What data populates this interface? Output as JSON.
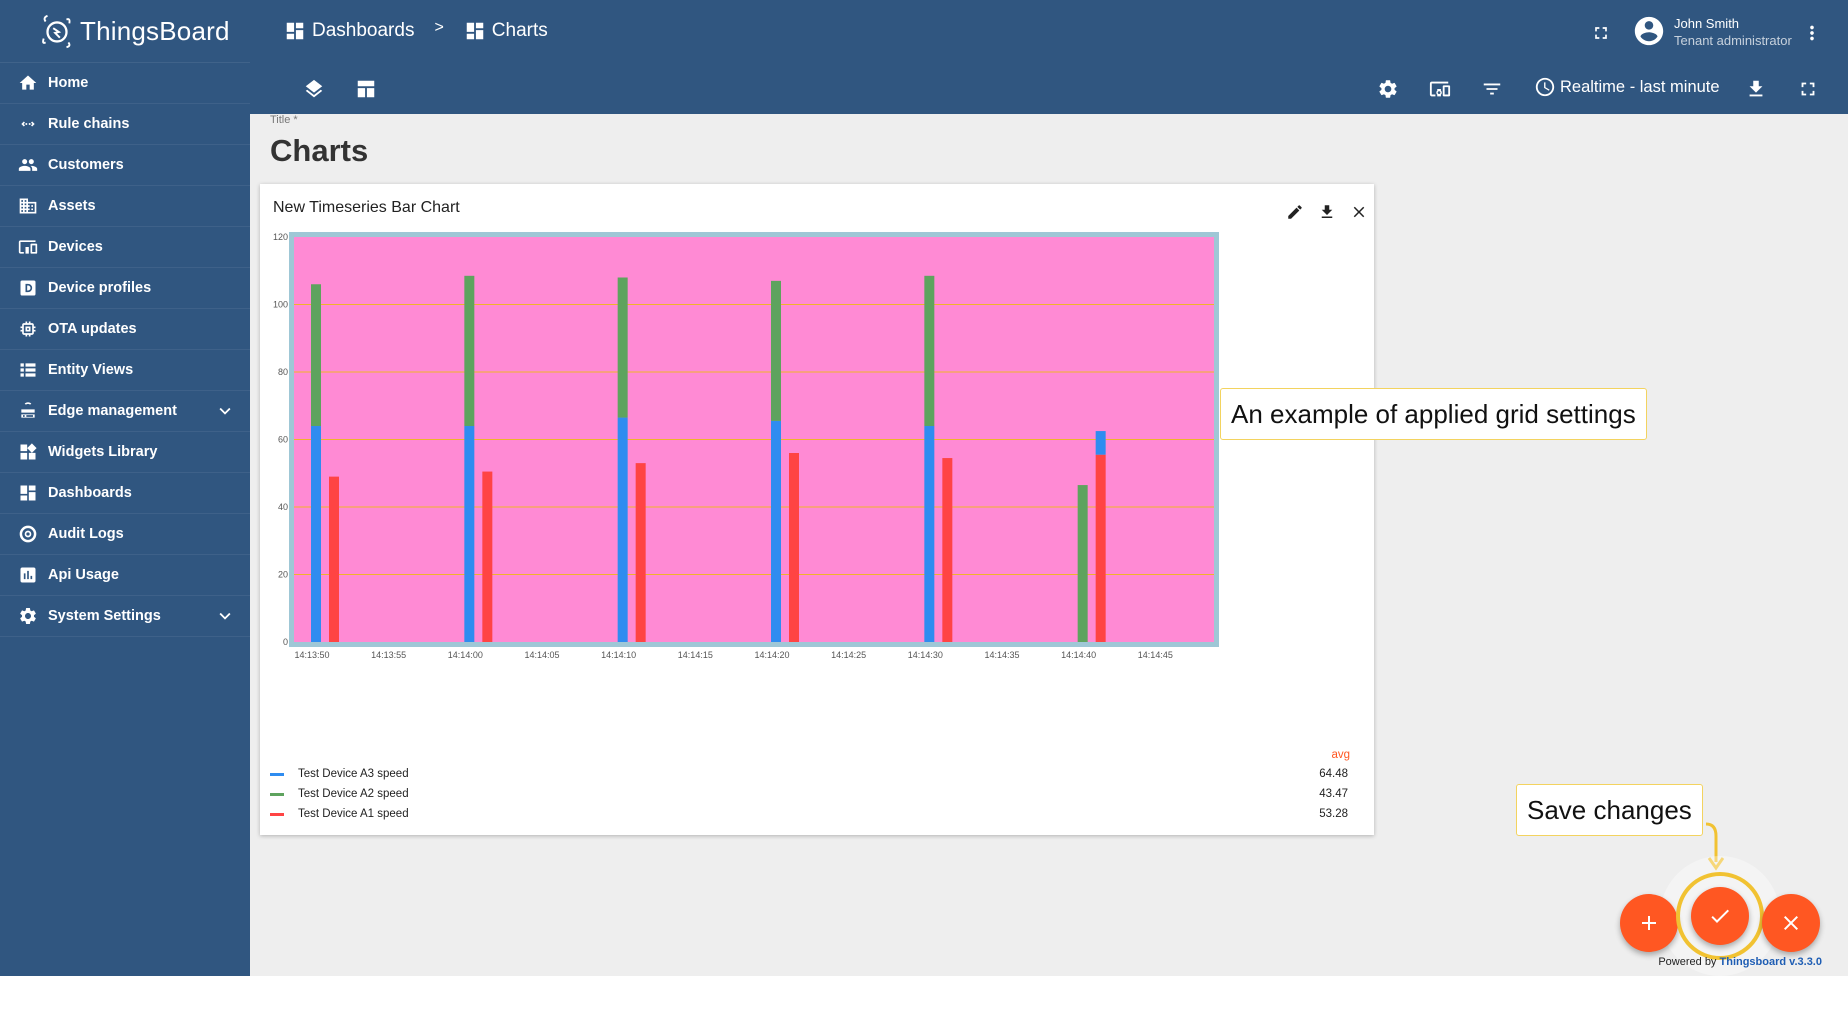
{
  "brand": {
    "name": "ThingsBoard"
  },
  "sidebar": {
    "items": [
      {
        "label": "Home",
        "icon": "home-icon"
      },
      {
        "label": "Rule chains",
        "icon": "rule-chains-icon"
      },
      {
        "label": "Customers",
        "icon": "customers-icon"
      },
      {
        "label": "Assets",
        "icon": "assets-icon"
      },
      {
        "label": "Devices",
        "icon": "devices-icon"
      },
      {
        "label": "Device profiles",
        "icon": "device-profiles-icon"
      },
      {
        "label": "OTA updates",
        "icon": "ota-icon"
      },
      {
        "label": "Entity Views",
        "icon": "entity-views-icon"
      },
      {
        "label": "Edge management",
        "icon": "edge-icon",
        "expandable": true
      },
      {
        "label": "Widgets Library",
        "icon": "widgets-icon"
      },
      {
        "label": "Dashboards",
        "icon": "dashboards-icon"
      },
      {
        "label": "Audit Logs",
        "icon": "audit-icon"
      },
      {
        "label": "Api Usage",
        "icon": "api-usage-icon"
      },
      {
        "label": "System Settings",
        "icon": "settings-icon",
        "expandable": true
      }
    ]
  },
  "header": {
    "breadcrumb": [
      "Dashboards",
      "Charts"
    ],
    "separator": ">",
    "user": {
      "name": "John Smith",
      "role": "Tenant administrator"
    },
    "timewindow": "Realtime - last minute"
  },
  "dashboard": {
    "title_label": "Title *",
    "title": "Charts"
  },
  "widget": {
    "title": "New Timeseries Bar Chart",
    "avg_label": "avg"
  },
  "chart_data": {
    "type": "bar",
    "title": "New Timeseries Bar Chart",
    "x_ticks": [
      "14:13:50",
      "14:13:55",
      "14:14:00",
      "14:14:05",
      "14:14:10",
      "14:14:15",
      "14:14:20",
      "14:14:25",
      "14:14:30",
      "14:14:35",
      "14:14:40",
      "14:14:45"
    ],
    "ylim": [
      0,
      120
    ],
    "y_ticks": [
      0,
      20,
      40,
      60,
      80,
      100,
      120
    ],
    "grid": true,
    "grid_color": "#f0b429",
    "plot_background": "#ff8ad4",
    "stacked": true,
    "categories": [
      "14:13:50",
      "14:14:00",
      "14:14:10",
      "14:14:20",
      "14:14:30",
      "14:14:40"
    ],
    "series": [
      {
        "name": "Test Device A3 speed",
        "color": "#2f8cf0",
        "stack": "a",
        "values": [
          64,
          64,
          66.5,
          65.5,
          64,
          0
        ],
        "avg": "64.48"
      },
      {
        "name": "Test Device A2 speed",
        "color": "#5ea35e",
        "stack": "a",
        "values": [
          42,
          44.5,
          41.5,
          41.5,
          44.5,
          46.5
        ],
        "avg": "43.47"
      },
      {
        "name": "Test Device A1 speed",
        "color": "#ff4444",
        "stack": "b",
        "values": [
          49,
          50.5,
          53,
          56,
          54.5,
          55.5
        ],
        "avg": "53.28"
      },
      {
        "name": "Test Device A3 speed",
        "color": "#2f8cf0",
        "stack": "b",
        "values": [
          0,
          0,
          0,
          0,
          0,
          7
        ],
        "hide_legend": true
      }
    ]
  },
  "callouts": {
    "grid": "An example of applied grid settings",
    "save": "Save changes"
  },
  "footer": {
    "powered": "Powered by ",
    "version": "Thingsboard v.3.3.0"
  },
  "colors": {
    "primary": "#305680",
    "accent": "#ff5722",
    "highlight": "#f1c232"
  }
}
